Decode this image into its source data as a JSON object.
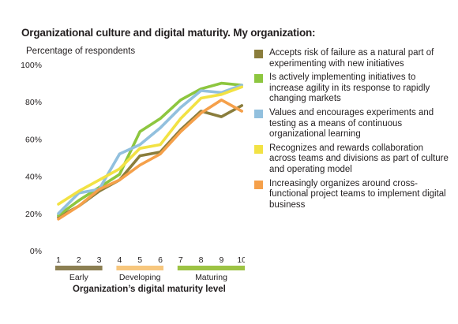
{
  "chart_data": {
    "type": "line",
    "title": "Organizational culture and digital maturity.  My organization:",
    "ylabel": "Percentage of respondents",
    "xlabel": "Organization’s digital maturity level",
    "x": [
      1,
      2,
      3,
      4,
      5,
      6,
      7,
      8,
      9,
      10
    ],
    "ylim": [
      0,
      100
    ],
    "yticks": [
      0,
      20,
      40,
      60,
      80,
      100
    ],
    "ytick_labels": [
      "0%",
      "20%",
      "40%",
      "60%",
      "80%",
      "100%"
    ],
    "grid": false,
    "legend_position": "right",
    "groups": [
      {
        "label": "Early",
        "from": 1,
        "to": 3,
        "color": "#8c7f52"
      },
      {
        "label": "Developing",
        "from": 4,
        "to": 6,
        "color": "#f7c77e"
      },
      {
        "label": "Maturing",
        "from": 7,
        "to": 10,
        "color": "#9dc344"
      }
    ],
    "series": [
      {
        "name": "Accepts risk of failure as a natural part of experimenting with new initiatives",
        "color": "#8a7d3c",
        "values": [
          18,
          24,
          32,
          38,
          51,
          53,
          65,
          75,
          72,
          78
        ]
      },
      {
        "name": "Is actively implementing initiatives to increase agility in its response to rapidly changing markets",
        "color": "#8dc63f",
        "values": [
          19,
          27,
          34,
          41,
          64,
          71,
          81,
          87,
          90,
          89
        ]
      },
      {
        "name": "Values and encourages experiments and testing as a means of continuous organizational learning",
        "color": "#92c0de",
        "values": [
          20,
          31,
          33,
          52,
          57,
          66,
          77,
          86,
          85,
          89
        ]
      },
      {
        "name": "Recognizes and rewards collaboration across teams and divisions as part of culture and operating model",
        "color": "#f2e244",
        "values": [
          25,
          32,
          38,
          44,
          55,
          57,
          71,
          82,
          84,
          88
        ]
      },
      {
        "name": "Increasingly organizes around cross-functional project teams to implement digital business",
        "color": "#f5a04a",
        "values": [
          17,
          24,
          33,
          38,
          46,
          52,
          64,
          74,
          81,
          75
        ]
      }
    ]
  }
}
